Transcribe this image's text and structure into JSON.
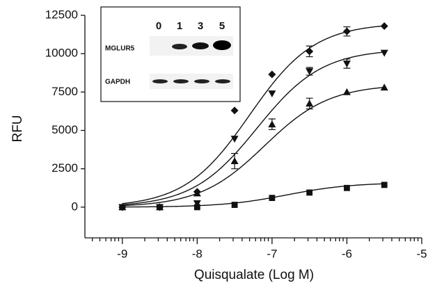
{
  "chart_data": {
    "type": "line",
    "x_label": "Quisqualate (Log M)",
    "y_label": "RFU",
    "x": [
      -9,
      -8.5,
      -8,
      -7.5,
      -7,
      -6.5,
      -6,
      -5.5
    ],
    "xlim": [
      -9.5,
      -5
    ],
    "xticks": [
      -9,
      -8,
      -7,
      -6,
      -5
    ],
    "xminorticks": [
      -9.4,
      -9.3,
      -9.22,
      -9.15,
      -9.1,
      -9.05,
      -8.7,
      -8.52,
      -8.4,
      -8.3,
      -8.22,
      -8.15,
      -8.1,
      -8.05,
      -7.7,
      -7.52,
      -7.4,
      -7.3,
      -7.22,
      -7.15,
      -7.1,
      -7.05,
      -6.7,
      -6.52,
      -6.4,
      -6.3,
      -6.22,
      -6.15,
      -6.1,
      -6.05,
      -5.7,
      -5.52,
      -5.4,
      -5.3,
      -5.22,
      -5.15,
      -5.1,
      -5.05
    ],
    "ylim": [
      -2000,
      12500
    ],
    "yticks": [
      0,
      2500,
      5000,
      7500,
      10000,
      12500
    ],
    "series": [
      {
        "marker": "diamond",
        "color": "#111111",
        "values": [
          0,
          0,
          1000,
          6300,
          8650,
          10150,
          11450,
          11800
        ],
        "errors": [
          null,
          null,
          null,
          null,
          null,
          350,
          300,
          null
        ],
        "fit": {
          "bottom": 0,
          "top": 12000,
          "logec50": -7.3,
          "hill": 1
        }
      },
      {
        "marker": "triangle-down",
        "color": "#111111",
        "values": [
          0,
          0,
          250,
          4450,
          7400,
          8850,
          9350,
          10050
        ],
        "errors": [
          null,
          null,
          null,
          null,
          null,
          250,
          300,
          null
        ],
        "fit": {
          "bottom": 0,
          "top": 10300,
          "logec50": -7.2,
          "hill": 1
        }
      },
      {
        "marker": "triangle-up",
        "color": "#111111",
        "values": [
          0,
          0,
          900,
          3000,
          5400,
          6750,
          7500,
          7800
        ],
        "errors": [
          null,
          null,
          null,
          500,
          350,
          350,
          null,
          null
        ],
        "fit": {
          "bottom": 0,
          "top": 8000,
          "logec50": -7.1,
          "hill": 1
        }
      },
      {
        "marker": "square",
        "color": "#111111",
        "values": [
          0,
          0,
          0,
          150,
          600,
          950,
          1250,
          1450
        ],
        "errors": [
          null,
          null,
          null,
          null,
          null,
          null,
          null,
          null
        ],
        "fit": {
          "bottom": 0,
          "top": 1600,
          "logec50": -6.8,
          "hill": 1
        }
      }
    ],
    "inset": {
      "lanes": [
        "0",
        "1",
        "3",
        "5"
      ],
      "rows": [
        "MGLUR5",
        "GAPDH"
      ]
    }
  }
}
